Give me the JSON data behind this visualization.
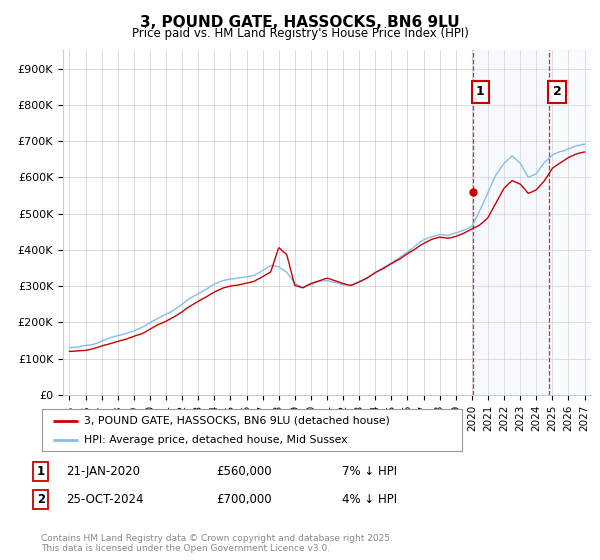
{
  "title": "3, POUND GATE, HASSOCKS, BN6 9LU",
  "subtitle": "Price paid vs. HM Land Registry's House Price Index (HPI)",
  "legend_line1": "3, POUND GATE, HASSOCKS, BN6 9LU (detached house)",
  "legend_line2": "HPI: Average price, detached house, Mid Sussex",
  "annotation1_date": "21-JAN-2020",
  "annotation1_price": "£560,000",
  "annotation1_hpi": "7% ↓ HPI",
  "annotation2_date": "25-OCT-2024",
  "annotation2_price": "£700,000",
  "annotation2_hpi": "4% ↓ HPI",
  "footer": "Contains HM Land Registry data © Crown copyright and database right 2025.\nThis data is licensed under the Open Government Licence v3.0.",
  "hpi_color": "#88bbee",
  "price_color": "#cc0000",
  "annotation_color": "#cc0000",
  "shade_color": "#ddeeff",
  "ylim": [
    0,
    950000
  ],
  "yticks": [
    0,
    100000,
    200000,
    300000,
    400000,
    500000,
    600000,
    700000,
    800000,
    900000
  ],
  "ytick_labels": [
    "£0",
    "£100K",
    "£200K",
    "£300K",
    "£400K",
    "£500K",
    "£600K",
    "£700K",
    "£800K",
    "£900K"
  ],
  "xlim_start": 1994.6,
  "xlim_end": 2027.4,
  "sale1_x": 2020.05,
  "sale1_y": 560000,
  "sale2_x": 2024.82,
  "sale2_y": 700000,
  "background_color": "#ffffff",
  "grid_color": "#cccccc",
  "years_hpi": [
    1995,
    1995.5,
    1996,
    1996.5,
    1997,
    1997.5,
    1998,
    1998.5,
    1999,
    1999.5,
    2000,
    2000.5,
    2001,
    2001.5,
    2002,
    2002.5,
    2003,
    2003.5,
    2004,
    2004.5,
    2005,
    2005.5,
    2006,
    2006.5,
    2007,
    2007.5,
    2008,
    2008.5,
    2009,
    2009.5,
    2010,
    2010.5,
    2011,
    2011.5,
    2012,
    2012.5,
    2013,
    2013.5,
    2014,
    2014.5,
    2015,
    2015.5,
    2016,
    2016.5,
    2017,
    2017.5,
    2018,
    2018.5,
    2019,
    2019.5,
    2020,
    2020.5,
    2021,
    2021.5,
    2022,
    2022.5,
    2023,
    2023.5,
    2024,
    2024.5,
    2025,
    2025.5,
    2026,
    2026.5,
    2027
  ],
  "hpi_vals": [
    130000,
    132000,
    135000,
    140000,
    148000,
    155000,
    162000,
    168000,
    175000,
    185000,
    198000,
    210000,
    220000,
    232000,
    248000,
    265000,
    278000,
    290000,
    305000,
    315000,
    320000,
    322000,
    325000,
    332000,
    345000,
    358000,
    355000,
    340000,
    310000,
    300000,
    308000,
    318000,
    320000,
    315000,
    310000,
    308000,
    318000,
    328000,
    342000,
    355000,
    368000,
    382000,
    398000,
    415000,
    432000,
    440000,
    445000,
    442000,
    448000,
    455000,
    465000,
    510000,
    560000,
    610000,
    640000,
    660000,
    640000,
    600000,
    610000,
    640000,
    660000,
    670000,
    680000,
    690000,
    695000
  ],
  "price_vals": [
    120000,
    121000,
    123000,
    128000,
    135000,
    142000,
    148000,
    155000,
    162000,
    170000,
    182000,
    195000,
    205000,
    218000,
    232000,
    248000,
    262000,
    275000,
    288000,
    298000,
    305000,
    308000,
    312000,
    318000,
    330000,
    342000,
    410000,
    390000,
    305000,
    298000,
    310000,
    318000,
    325000,
    318000,
    310000,
    305000,
    315000,
    326000,
    340000,
    352000,
    365000,
    378000,
    392000,
    405000,
    420000,
    432000,
    438000,
    435000,
    440000,
    448000,
    460000,
    470000,
    490000,
    530000,
    570000,
    590000,
    580000,
    555000,
    565000,
    590000,
    625000,
    640000,
    655000,
    665000,
    670000
  ]
}
